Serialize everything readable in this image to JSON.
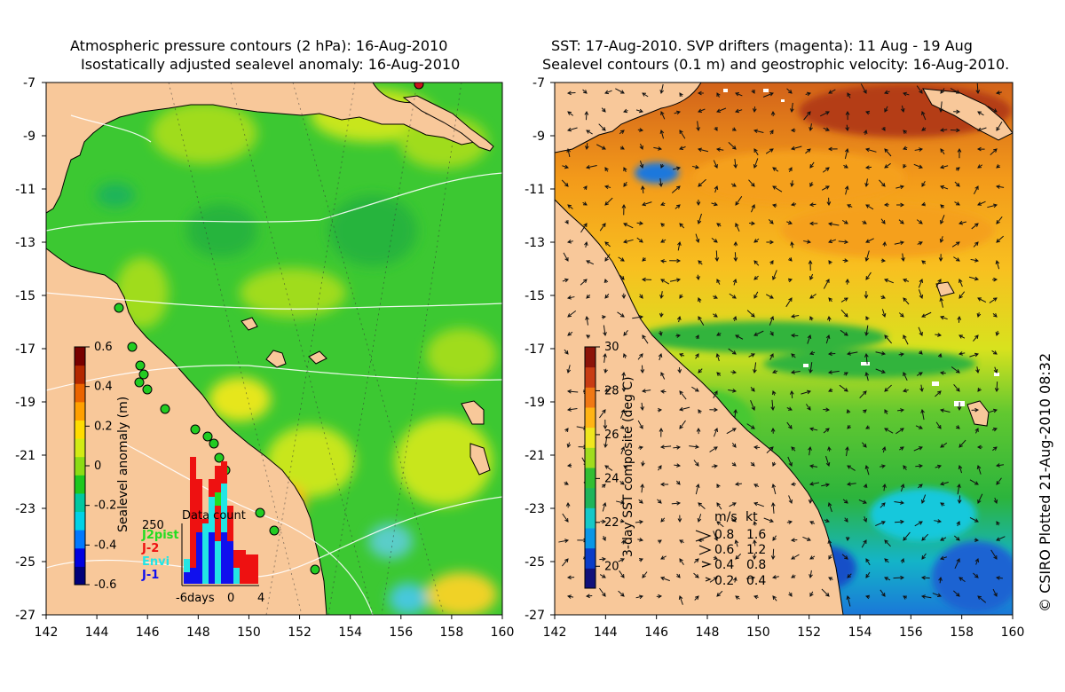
{
  "left_panel": {
    "title_line1": "Atmospheric pressure contours (2 hPa): 16-Aug-2010",
    "title_line2": "Isostatically adjusted sealevel anomaly: 16-Aug-2010",
    "colorbar": {
      "label": "Sealevel anomaly (m)",
      "ticks": [
        "0.6",
        "0.4",
        "0.2",
        "0",
        "-0.2",
        "-0.4",
        "-0.6"
      ],
      "range": [
        -0.6,
        0.6
      ],
      "colors": [
        "#00007a",
        "#0000e0",
        "#0078ff",
        "#00d2e6",
        "#00c8a0",
        "#1ec81e",
        "#8cdc14",
        "#d2eb14",
        "#ffdc00",
        "#ffa000",
        "#eb6400",
        "#b42800",
        "#780000"
      ]
    },
    "inset": {
      "title": "Data count",
      "ytick": "250",
      "xticks": [
        "-6days",
        "0",
        "4"
      ],
      "legend": [
        {
          "label": "J2pist",
          "color": "#22dd22"
        },
        {
          "label": "J-2",
          "color": "#ee1111"
        },
        {
          "label": "Envi",
          "color": "#22e5e5"
        },
        {
          "label": "J-1",
          "color": "#1010ee"
        }
      ]
    }
  },
  "right_panel": {
    "title_line1": "SST: 17-Aug-2010. SVP drifters (magenta): 11 Aug - 19 Aug",
    "title_line2": "Sealevel contours (0.1 m) and geostrophic velocity: 16-Aug-2010.",
    "colorbar": {
      "label": "3-day SST composite (deg C)",
      "ticks": [
        "30",
        "28",
        "26",
        "24",
        "22",
        "20"
      ],
      "range": [
        19,
        30
      ],
      "colors": [
        "#10107a",
        "#0a3cc8",
        "#0a96e6",
        "#14c8c8",
        "#1eb45a",
        "#32be32",
        "#a0dc1e",
        "#f0e61e",
        "#ffb414",
        "#f07814",
        "#c83c14",
        "#8c140a"
      ]
    },
    "velocity_legend": {
      "headers": [
        "m/s",
        "kt"
      ],
      "rows": [
        {
          "ms": "0.8",
          "kt": "1.6"
        },
        {
          "ms": "0.6",
          "kt": "1.2"
        },
        {
          "ms": "0.4",
          "kt": "0.8"
        },
        {
          "ms": "0.2",
          "kt": "0.4"
        }
      ]
    }
  },
  "axes": {
    "lon_ticks": [
      "142",
      "144",
      "146",
      "148",
      "150",
      "152",
      "154",
      "156",
      "158",
      "160"
    ],
    "lat_ticks": [
      "-7",
      "-9",
      "-11",
      "-13",
      "-15",
      "-17",
      "-19",
      "-21",
      "-23",
      "-25",
      "-27"
    ],
    "lon_range": [
      142,
      160
    ],
    "lat_range": [
      -27,
      -7
    ]
  },
  "credit": "© CSIRO Plotted 21-Aug-2010 08:32",
  "colors": {
    "land": "#f8c89a",
    "contour": "#ffffff",
    "coast": "#000000",
    "tide_gauge": "#22cc22"
  }
}
